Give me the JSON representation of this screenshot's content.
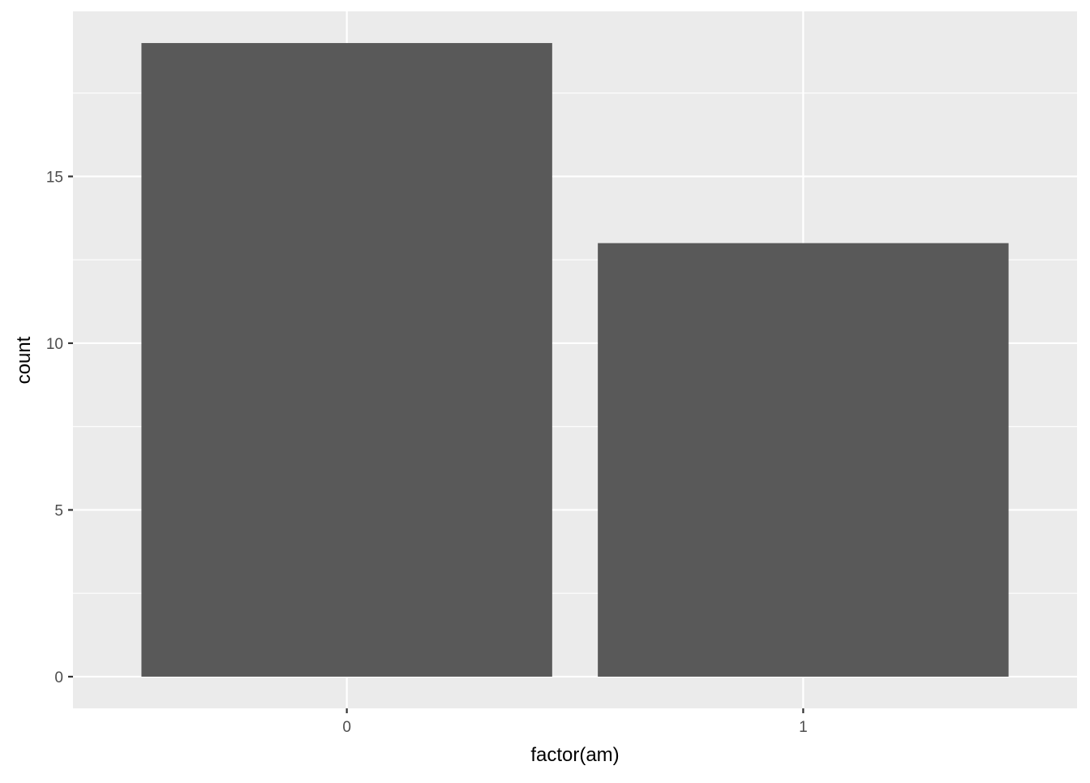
{
  "chart_data": {
    "type": "bar",
    "title": "",
    "xlabel": "factor(am)",
    "ylabel": "count",
    "categories": [
      "0",
      "1"
    ],
    "values": [
      19,
      13
    ],
    "ylim": [
      -0.95,
      19.95
    ],
    "yticks": [
      0,
      5,
      10,
      15
    ],
    "grid": true,
    "colors": {
      "panel": "#EBEBEB",
      "bar": "#595959",
      "grid": "#FFFFFF",
      "tick_text": "#4D4D4D",
      "axis_title": "#000000"
    }
  }
}
